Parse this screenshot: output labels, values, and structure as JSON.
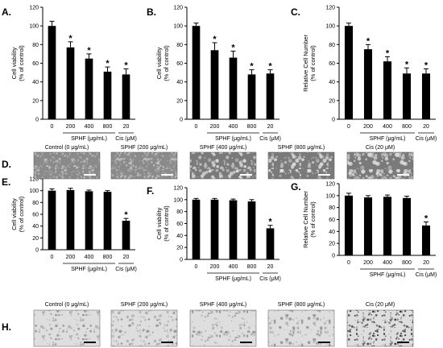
{
  "chart_data": [
    {
      "id": "A",
      "label": "A.",
      "type": "bar",
      "categories": [
        "0",
        "200",
        "400",
        "800",
        "20"
      ],
      "values": [
        100,
        77,
        65,
        51,
        48
      ],
      "errors": [
        5,
        6,
        5,
        5,
        6
      ],
      "significant": [
        false,
        true,
        true,
        true,
        true
      ],
      "ylabel_lines": [
        "Cell viability",
        "(% of control)"
      ],
      "ylim": [
        0,
        120
      ],
      "yticks": [
        0,
        20,
        40,
        60,
        80,
        100,
        120
      ],
      "groups": [
        {
          "label": "SPHF (μg/mL)",
          "from": 1,
          "to": 3
        },
        {
          "label": "Cis (μM)",
          "from": 4,
          "to": 4
        }
      ]
    },
    {
      "id": "B",
      "label": "B.",
      "type": "bar",
      "categories": [
        "0",
        "200",
        "400",
        "800",
        "20"
      ],
      "values": [
        100,
        74,
        66,
        48,
        49
      ],
      "errors": [
        3,
        8,
        7,
        5,
        4
      ],
      "significant": [
        false,
        true,
        true,
        true,
        true
      ],
      "ylabel_lines": [
        "Cell viability",
        "(% of control)"
      ],
      "ylim": [
        0,
        120
      ],
      "yticks": [
        0,
        20,
        40,
        60,
        80,
        100,
        120
      ],
      "groups": [
        {
          "label": "SPHF (μg/mL)",
          "from": 1,
          "to": 3
        },
        {
          "label": "Cis (μM)",
          "from": 4,
          "to": 4
        }
      ]
    },
    {
      "id": "C",
      "label": "C.",
      "type": "bar",
      "categories": [
        "0",
        "200",
        "400",
        "800",
        "20"
      ],
      "values": [
        100,
        75,
        62,
        49,
        49
      ],
      "errors": [
        3,
        5,
        5,
        6,
        5
      ],
      "significant": [
        false,
        true,
        true,
        true,
        true
      ],
      "ylabel_lines": [
        "Relative Cell Number",
        "(% of control)"
      ],
      "ylim": [
        0,
        120
      ],
      "yticks": [
        0,
        20,
        40,
        60,
        80,
        100,
        120
      ],
      "groups": [
        {
          "label": "SPHF (μg/mL)",
          "from": 1,
          "to": 3
        },
        {
          "label": "Cis (μM)",
          "from": 4,
          "to": 4
        }
      ]
    },
    {
      "id": "E",
      "label": "E.",
      "type": "bar",
      "categories": [
        "0",
        "200",
        "400",
        "800",
        "20"
      ],
      "values": [
        100,
        101,
        99,
        98,
        49
      ],
      "errors": [
        3,
        3,
        2,
        2,
        4
      ],
      "significant": [
        false,
        false,
        false,
        false,
        true
      ],
      "ylabel_lines": [
        "Cell viability",
        "(% of control)"
      ],
      "ylim": [
        0,
        120
      ],
      "yticks": [
        0,
        20,
        40,
        60,
        80,
        100,
        120
      ],
      "groups": [
        {
          "label": "SPHF (μg/mL)",
          "from": 1,
          "to": 3
        },
        {
          "label": "Cis (μM)",
          "from": 4,
          "to": 4
        }
      ]
    },
    {
      "id": "F",
      "label": "F.",
      "type": "bar",
      "categories": [
        "0",
        "200",
        "400",
        "800",
        "20"
      ],
      "values": [
        100,
        100,
        99,
        97,
        52
      ],
      "errors": [
        2,
        2,
        2,
        3,
        5
      ],
      "significant": [
        false,
        false,
        false,
        false,
        true
      ],
      "ylabel_lines": [
        "Cell viability",
        "(% of control)"
      ],
      "ylim": [
        0,
        120
      ],
      "yticks": [
        0,
        20,
        40,
        60,
        80,
        100,
        120
      ],
      "groups": [
        {
          "label": "SPHF (μg/mL)",
          "from": 1,
          "to": 3
        },
        {
          "label": "Cis (μM)",
          "from": 4,
          "to": 4
        }
      ]
    },
    {
      "id": "G",
      "label": "G.",
      "type": "bar",
      "categories": [
        "0",
        "200",
        "400",
        "800",
        "20"
      ],
      "values": [
        100,
        97,
        98,
        96,
        50
      ],
      "errors": [
        4,
        3,
        3,
        3,
        6
      ],
      "significant": [
        false,
        false,
        false,
        false,
        true
      ],
      "ylabel_lines": [
        "Relative Cell Number",
        "(% of control)"
      ],
      "ylim": [
        0,
        120
      ],
      "yticks": [
        0,
        20,
        40,
        60,
        80,
        100,
        120
      ],
      "groups": [
        {
          "label": "SPHF (μg/mL)",
          "from": 1,
          "to": 3
        },
        {
          "label": "Cis (μM)",
          "from": 4,
          "to": 4
        }
      ]
    }
  ],
  "image_rows": [
    {
      "label": "D.",
      "style": "phase",
      "captions": [
        "Control (0 μg/mL)",
        "SPHF (200 μg/mL)",
        "SPHF (400 μg/mL)",
        "SPHF (800 μg/mL)",
        "Cis (20 μM)"
      ]
    },
    {
      "label": "H.",
      "style": "bright",
      "captions": [
        "Control (0 μg/mL)",
        "SPHF (200 μg/mL)",
        "SPHF (400 μg/mL)",
        "SPHF (800 μg/mL)",
        "Cis (20 μM)"
      ]
    }
  ],
  "star_symbol": "*",
  "colors": {
    "bar": "#000000",
    "phase_bg": "#8c8c8c",
    "bright_bg": "#dcdcdc",
    "scalebar": "#ffffff",
    "scalebar_dark": "#000000"
  }
}
